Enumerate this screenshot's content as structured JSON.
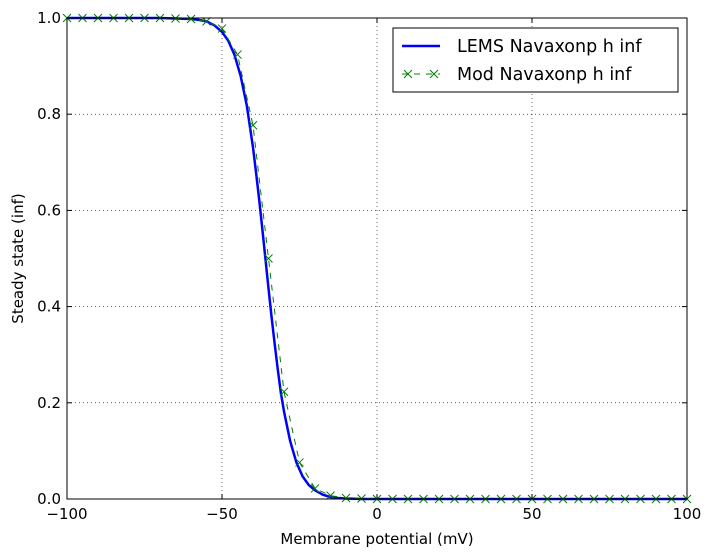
{
  "chart_data": {
    "type": "line",
    "title": "",
    "xlabel": "Membrane potential (mV)",
    "ylabel": "Steady state (inf)",
    "xlim": [
      -100,
      100
    ],
    "ylim": [
      0.0,
      1.0
    ],
    "x_ticks": [
      -100,
      -50,
      0,
      50,
      100
    ],
    "x_tick_labels": [
      "−100",
      "−50",
      "0",
      "50",
      "100"
    ],
    "y_ticks": [
      0.0,
      0.2,
      0.4,
      0.6,
      0.8,
      1.0
    ],
    "y_tick_labels": [
      "0.0",
      "0.2",
      "0.4",
      "0.6",
      "0.8",
      "1.0"
    ],
    "grid": true,
    "legend_position": "top-right",
    "series": [
      {
        "name": "LEMS Navaxonp h inf",
        "color": "#0000ff",
        "style": "solid-line",
        "x": [
          -100,
          -90,
          -80,
          -70,
          -65,
          -60,
          -57.5,
          -55,
          -52.5,
          -50,
          -48,
          -46,
          -44,
          -42,
          -40,
          -39,
          -38,
          -37,
          -36,
          -35,
          -34,
          -33,
          -32,
          -31,
          -30,
          -28,
          -26,
          -24,
          -22,
          -20,
          -17.5,
          -15,
          -12.5,
          -10,
          -5,
          0,
          10,
          20,
          40,
          60,
          80,
          100
        ],
        "y": [
          1.0,
          1.0,
          1.0,
          1.0,
          0.999,
          0.998,
          0.996,
          0.993,
          0.985,
          0.971,
          0.953,
          0.924,
          0.88,
          0.818,
          0.731,
          0.678,
          0.622,
          0.562,
          0.5,
          0.438,
          0.378,
          0.322,
          0.269,
          0.22,
          0.182,
          0.12,
          0.076,
          0.047,
          0.029,
          0.018,
          0.009,
          0.004,
          0.002,
          0.001,
          0.0,
          0.0,
          0.0,
          0.0,
          0.0,
          0.0,
          0.0,
          0.0
        ]
      },
      {
        "name": "Mod Navaxonp h inf",
        "color": "#008000",
        "style": "dashed-x-markers",
        "x": [
          -100,
          -95,
          -90,
          -85,
          -80,
          -75,
          -70,
          -65,
          -60,
          -55,
          -50,
          -45,
          -40,
          -35,
          -30,
          -25,
          -20,
          -15,
          -10,
          -5,
          0,
          5,
          10,
          15,
          20,
          25,
          30,
          35,
          40,
          45,
          50,
          55,
          60,
          65,
          70,
          75,
          80,
          85,
          90,
          95,
          100
        ],
        "y": [
          1.0,
          1.0,
          1.0,
          1.0,
          1.0,
          1.0,
          1.0,
          0.999,
          0.998,
          0.993,
          0.978,
          0.924,
          0.777,
          0.5,
          0.223,
          0.076,
          0.022,
          0.007,
          0.002,
          0.001,
          0.0,
          0.0,
          0.0,
          0.0,
          0.0,
          0.0,
          0.0,
          0.0,
          0.0,
          0.0,
          0.0,
          0.0,
          0.0,
          0.0,
          0.0,
          0.0,
          0.0,
          0.0,
          0.0,
          0.0,
          0.0
        ]
      }
    ]
  }
}
